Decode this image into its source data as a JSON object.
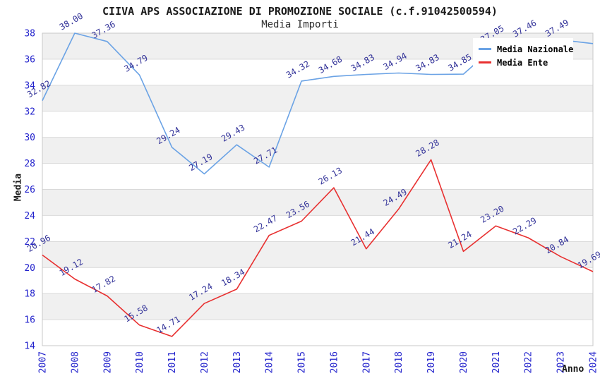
{
  "chart_data": {
    "type": "line",
    "title": "CIIVA APS ASSOCIAZIONE DI PROMOZIONE SOCIALE (c.f.91042500594)",
    "subtitle": "Media Importi",
    "xlabel": "Anno",
    "ylabel": "Media",
    "x": [
      2007,
      2008,
      2009,
      2010,
      2011,
      2012,
      2013,
      2014,
      2015,
      2016,
      2017,
      2018,
      2019,
      2020,
      2021,
      2022,
      2023,
      2024
    ],
    "ylim": [
      14,
      38
    ],
    "ytick_step": 2,
    "grid": true,
    "legend_position": "top-right",
    "series": [
      {
        "name": "Media Nazionale",
        "color": "#6ba3e5",
        "values": [
          32.82,
          38.0,
          37.36,
          34.79,
          29.24,
          27.19,
          29.43,
          27.71,
          34.32,
          34.68,
          34.83,
          34.94,
          34.83,
          34.85,
          37.05,
          37.46,
          37.49,
          37.2
        ],
        "point_labels": [
          "32.82",
          "38.00",
          "37.36",
          "34.79",
          "29.24",
          "27.19",
          "29.43",
          "27.71",
          "34.32",
          "34.68",
          "34.83",
          "34.94",
          "34.83",
          "34.85",
          "37.05",
          "37.46",
          "37.49",
          ""
        ]
      },
      {
        "name": "Media Ente",
        "color": "#e83030",
        "values": [
          20.96,
          19.12,
          17.82,
          15.58,
          14.71,
          17.24,
          18.34,
          22.47,
          23.56,
          26.13,
          21.44,
          24.49,
          28.28,
          21.24,
          23.2,
          22.29,
          20.84,
          19.69
        ],
        "point_labels": [
          "20.96",
          "19.12",
          "17.82",
          "15.58",
          "14.71",
          "17.24",
          "18.34",
          "22.47",
          "23.56",
          "26.13",
          "21.44",
          "24.49",
          "28.28",
          "21.24",
          "23.20",
          "22.29",
          "20.84",
          "19.69"
        ]
      }
    ],
    "colors": {
      "tick_label": "#2222cc",
      "point_label": "#333399",
      "band_gray": "#f0f0f0",
      "band_white": "#ffffff",
      "gridline": "#d9d9d9",
      "plot_border": "#c8c8c8",
      "title_text": "#1a1a1a"
    }
  }
}
